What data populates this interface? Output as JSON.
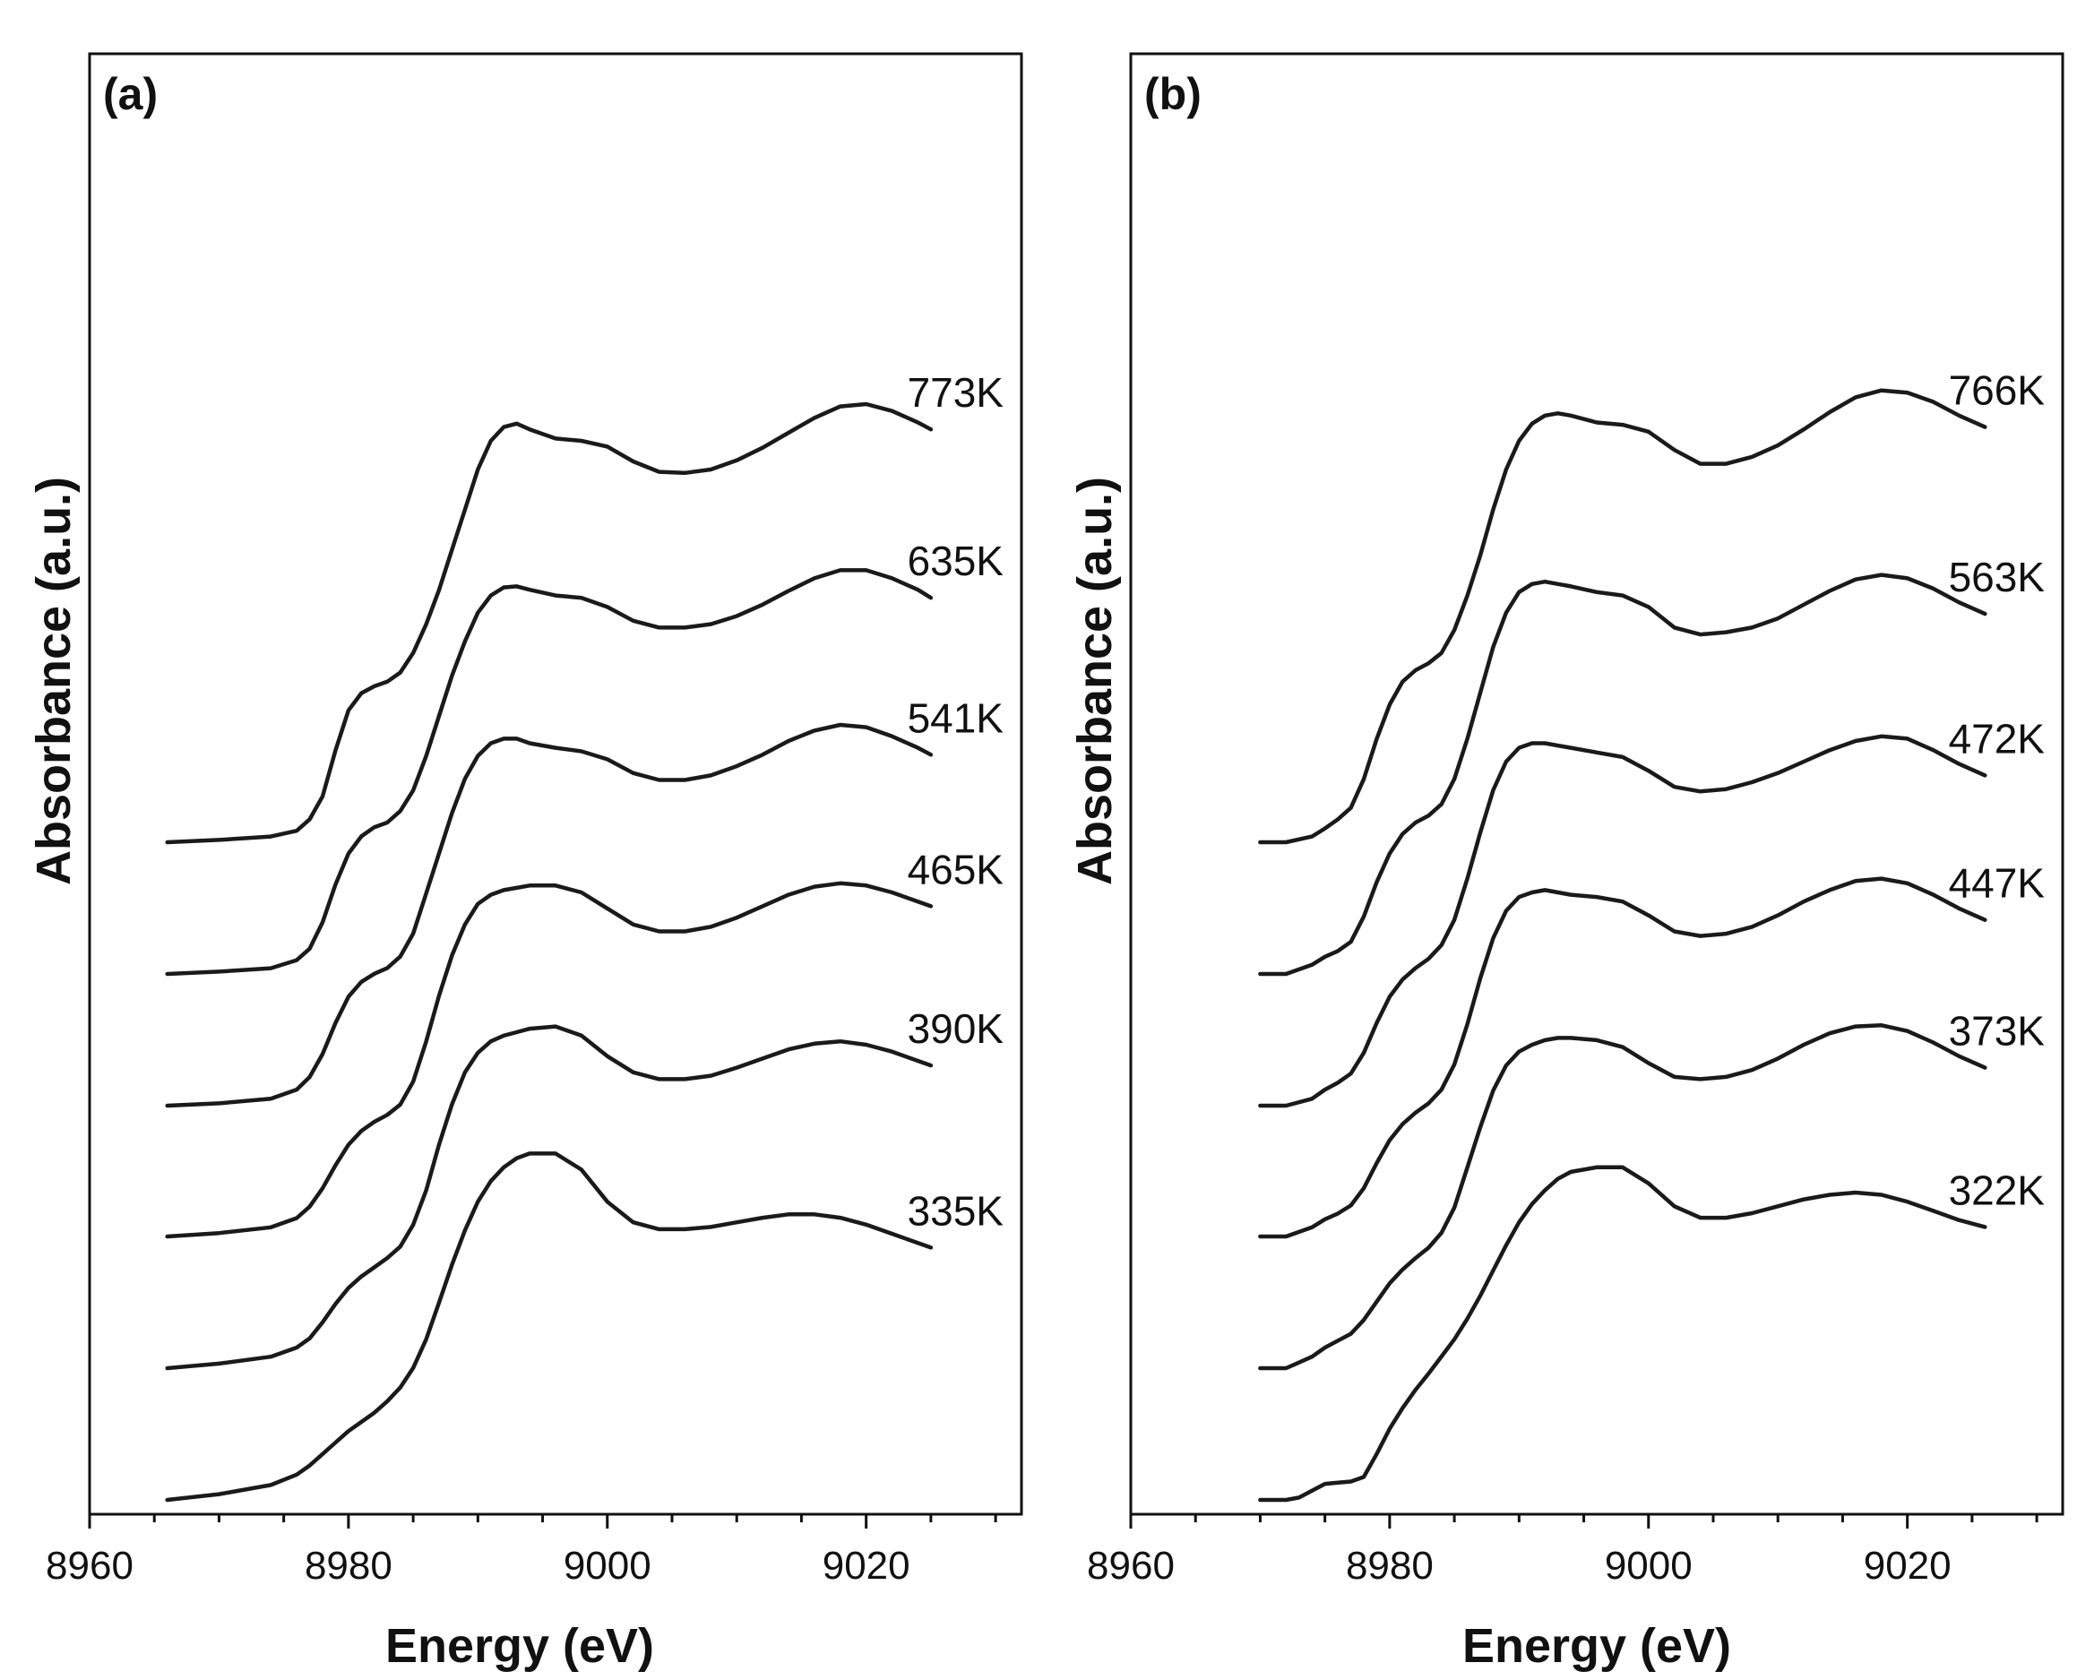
{
  "chart_data": [
    {
      "type": "line",
      "panel_label": "(a)",
      "xlabel": "Energy (eV)",
      "ylabel": "Absorbance (a.u.)",
      "xlim": [
        8960,
        9032
      ],
      "xticks": [
        8960,
        8980,
        9000,
        9020
      ],
      "yticks_shown": false,
      "note": "Curves vertically offset (stacked); y values in arbitrary units relative to each curve's pre-edge baseline",
      "series": [
        {
          "name": "773K",
          "x": [
            8966,
            8970,
            8974,
            8976,
            8977,
            8978,
            8979,
            8980,
            8981,
            8982,
            8983,
            8984,
            8985,
            8986,
            8987,
            8988,
            8989,
            8990,
            8991,
            8992,
            8993,
            8994,
            8996,
            8998,
            9000,
            9002,
            9004,
            9006,
            9008,
            9010,
            9012,
            9014,
            9016,
            9018,
            9020,
            9022,
            9024,
            9025
          ],
          "y": [
            0,
            0.02,
            0.05,
            0.1,
            0.2,
            0.4,
            0.8,
            1.15,
            1.3,
            1.36,
            1.4,
            1.48,
            1.65,
            1.9,
            2.2,
            2.55,
            2.9,
            3.25,
            3.5,
            3.62,
            3.65,
            3.6,
            3.52,
            3.5,
            3.45,
            3.32,
            3.23,
            3.22,
            3.25,
            3.33,
            3.44,
            3.57,
            3.7,
            3.8,
            3.82,
            3.76,
            3.66,
            3.6
          ]
        },
        {
          "name": "635K",
          "x": [
            8966,
            8970,
            8974,
            8976,
            8977,
            8978,
            8979,
            8980,
            8981,
            8982,
            8983,
            8984,
            8985,
            8986,
            8987,
            8988,
            8989,
            8990,
            8991,
            8992,
            8993,
            8994,
            8996,
            8998,
            9000,
            9002,
            9004,
            9006,
            9008,
            9010,
            9012,
            9014,
            9016,
            9018,
            9020,
            9022,
            9024,
            9025
          ],
          "y": [
            0,
            0.02,
            0.05,
            0.12,
            0.22,
            0.45,
            0.78,
            1.05,
            1.2,
            1.28,
            1.32,
            1.42,
            1.6,
            1.9,
            2.25,
            2.6,
            2.9,
            3.15,
            3.3,
            3.37,
            3.38,
            3.35,
            3.3,
            3.28,
            3.2,
            3.08,
            3.02,
            3.02,
            3.05,
            3.12,
            3.22,
            3.34,
            3.45,
            3.52,
            3.52,
            3.45,
            3.35,
            3.28
          ]
        },
        {
          "name": "541K",
          "x": [
            8966,
            8970,
            8974,
            8976,
            8977,
            8978,
            8979,
            8980,
            8981,
            8982,
            8983,
            8984,
            8985,
            8986,
            8987,
            8988,
            8989,
            8990,
            8991,
            8992,
            8993,
            8994,
            8996,
            8998,
            9000,
            9002,
            9004,
            9006,
            9008,
            9010,
            9012,
            9014,
            9016,
            9018,
            9020,
            9022,
            9024,
            9025
          ],
          "y": [
            0,
            0.02,
            0.06,
            0.14,
            0.25,
            0.45,
            0.72,
            0.95,
            1.08,
            1.15,
            1.2,
            1.3,
            1.5,
            1.85,
            2.2,
            2.55,
            2.85,
            3.05,
            3.16,
            3.2,
            3.2,
            3.16,
            3.12,
            3.09,
            3.02,
            2.9,
            2.84,
            2.84,
            2.88,
            2.96,
            3.06,
            3.18,
            3.27,
            3.32,
            3.3,
            3.22,
            3.12,
            3.06
          ]
        },
        {
          "name": "465K",
          "x": [
            8966,
            8970,
            8974,
            8976,
            8977,
            8978,
            8979,
            8980,
            8981,
            8982,
            8983,
            8984,
            8985,
            8986,
            8987,
            8988,
            8989,
            8990,
            8991,
            8992,
            8993,
            8994,
            8996,
            8998,
            9000,
            9002,
            9004,
            9006,
            9008,
            9010,
            9012,
            9014,
            9016,
            9018,
            9020,
            9022,
            9024,
            9025
          ],
          "y": [
            0,
            0.03,
            0.08,
            0.16,
            0.26,
            0.42,
            0.62,
            0.8,
            0.92,
            1.0,
            1.06,
            1.15,
            1.35,
            1.7,
            2.1,
            2.45,
            2.72,
            2.9,
            2.98,
            3.02,
            3.04,
            3.06,
            3.06,
            3.0,
            2.86,
            2.72,
            2.66,
            2.66,
            2.7,
            2.78,
            2.88,
            2.98,
            3.05,
            3.08,
            3.06,
            3.0,
            2.92,
            2.88
          ]
        },
        {
          "name": "390K",
          "x": [
            8966,
            8970,
            8974,
            8976,
            8977,
            8978,
            8979,
            8980,
            8981,
            8982,
            8983,
            8984,
            8985,
            8986,
            8987,
            8988,
            8989,
            8990,
            8991,
            8992,
            8993,
            8994,
            8996,
            8998,
            9000,
            9002,
            9004,
            9006,
            9008,
            9010,
            9012,
            9014,
            9016,
            9018,
            9020,
            9022,
            9024,
            9025
          ],
          "y": [
            0,
            0.04,
            0.1,
            0.18,
            0.26,
            0.4,
            0.56,
            0.7,
            0.8,
            0.88,
            0.96,
            1.06,
            1.25,
            1.55,
            1.95,
            2.3,
            2.58,
            2.75,
            2.85,
            2.9,
            2.93,
            2.96,
            2.98,
            2.9,
            2.72,
            2.58,
            2.52,
            2.52,
            2.55,
            2.62,
            2.7,
            2.78,
            2.83,
            2.85,
            2.82,
            2.76,
            2.68,
            2.64
          ]
        },
        {
          "name": "335K",
          "x": [
            8966,
            8970,
            8974,
            8976,
            8977,
            8978,
            8979,
            8980,
            8981,
            8982,
            8983,
            8984,
            8985,
            8986,
            8987,
            8988,
            8989,
            8990,
            8991,
            8992,
            8993,
            8994,
            8996,
            8998,
            9000,
            9002,
            9004,
            9006,
            9008,
            9010,
            9012,
            9014,
            9016,
            9018,
            9020,
            9022,
            9024,
            9025
          ],
          "y": [
            0,
            0.05,
            0.13,
            0.22,
            0.3,
            0.4,
            0.5,
            0.6,
            0.68,
            0.76,
            0.86,
            0.98,
            1.15,
            1.4,
            1.72,
            2.05,
            2.35,
            2.6,
            2.78,
            2.9,
            2.98,
            3.02,
            3.02,
            2.88,
            2.6,
            2.42,
            2.36,
            2.36,
            2.38,
            2.42,
            2.46,
            2.49,
            2.49,
            2.46,
            2.4,
            2.32,
            2.24,
            2.2
          ]
        }
      ]
    },
    {
      "type": "line",
      "panel_label": "(b)",
      "xlabel": "Energy (eV)",
      "ylabel": "Absorbance (a.u.)",
      "xlim": [
        8960,
        9032
      ],
      "xticks": [
        8960,
        8980,
        9000,
        9020
      ],
      "yticks_shown": false,
      "note": "Curves vertically offset (stacked); y values in arbitrary units relative to each curve's pre-edge baseline",
      "series": [
        {
          "name": "766K",
          "x": [
            8970,
            8972,
            8974,
            8975,
            8976,
            8977,
            8978,
            8979,
            8980,
            8981,
            8982,
            8983,
            8984,
            8985,
            8986,
            8987,
            8988,
            8989,
            8990,
            8991,
            8992,
            8993,
            8994,
            8996,
            8998,
            9000,
            9002,
            9004,
            9006,
            9008,
            9010,
            9012,
            9014,
            9016,
            9018,
            9020,
            9022,
            9024,
            9026
          ],
          "y": [
            0,
            0,
            0.05,
            0.12,
            0.2,
            0.3,
            0.55,
            0.9,
            1.2,
            1.4,
            1.5,
            1.56,
            1.65,
            1.85,
            2.15,
            2.5,
            2.9,
            3.25,
            3.5,
            3.65,
            3.72,
            3.74,
            3.72,
            3.66,
            3.64,
            3.58,
            3.42,
            3.3,
            3.3,
            3.36,
            3.46,
            3.6,
            3.75,
            3.88,
            3.94,
            3.92,
            3.84,
            3.72,
            3.62
          ]
        },
        {
          "name": "563K",
          "x": [
            8970,
            8972,
            8974,
            8975,
            8976,
            8977,
            8978,
            8979,
            8980,
            8981,
            8982,
            8983,
            8984,
            8985,
            8986,
            8987,
            8988,
            8989,
            8990,
            8991,
            8992,
            8993,
            8994,
            8996,
            8998,
            9000,
            9002,
            9004,
            9006,
            9008,
            9010,
            9012,
            9014,
            9016,
            9018,
            9020,
            9022,
            9024,
            9026
          ],
          "y": [
            0,
            0,
            0.08,
            0.15,
            0.2,
            0.28,
            0.5,
            0.8,
            1.05,
            1.22,
            1.32,
            1.38,
            1.48,
            1.7,
            2.05,
            2.45,
            2.85,
            3.15,
            3.33,
            3.4,
            3.42,
            3.4,
            3.38,
            3.33,
            3.3,
            3.2,
            3.02,
            2.96,
            2.98,
            3.02,
            3.1,
            3.22,
            3.34,
            3.44,
            3.48,
            3.45,
            3.36,
            3.24,
            3.14
          ]
        },
        {
          "name": "472K",
          "x": [
            8970,
            8972,
            8974,
            8975,
            8976,
            8977,
            8978,
            8979,
            8980,
            8981,
            8982,
            8983,
            8984,
            8985,
            8986,
            8987,
            8988,
            8989,
            8990,
            8991,
            8992,
            8993,
            8994,
            8996,
            8998,
            9000,
            9002,
            9004,
            9006,
            9008,
            9010,
            9012,
            9014,
            9016,
            9018,
            9020,
            9022,
            9024,
            9026
          ],
          "y": [
            0,
            0,
            0.06,
            0.14,
            0.2,
            0.28,
            0.46,
            0.72,
            0.95,
            1.1,
            1.2,
            1.28,
            1.4,
            1.62,
            1.98,
            2.38,
            2.75,
            3.0,
            3.12,
            3.16,
            3.16,
            3.14,
            3.12,
            3.08,
            3.04,
            2.92,
            2.78,
            2.74,
            2.76,
            2.82,
            2.9,
            3.0,
            3.1,
            3.18,
            3.22,
            3.2,
            3.1,
            2.98,
            2.88
          ]
        },
        {
          "name": "447K",
          "x": [
            8970,
            8972,
            8974,
            8975,
            8976,
            8977,
            8978,
            8979,
            8980,
            8981,
            8982,
            8983,
            8984,
            8985,
            8986,
            8987,
            8988,
            8989,
            8990,
            8991,
            8992,
            8993,
            8994,
            8996,
            8998,
            9000,
            9002,
            9004,
            9006,
            9008,
            9010,
            9012,
            9014,
            9016,
            9018,
            9020,
            9022,
            9024,
            9026
          ],
          "y": [
            0,
            0,
            0.08,
            0.15,
            0.2,
            0.27,
            0.42,
            0.64,
            0.84,
            0.98,
            1.08,
            1.16,
            1.28,
            1.5,
            1.85,
            2.25,
            2.6,
            2.84,
            2.96,
            3.0,
            3.02,
            3.0,
            2.98,
            2.96,
            2.92,
            2.8,
            2.66,
            2.62,
            2.64,
            2.7,
            2.8,
            2.92,
            3.02,
            3.1,
            3.12,
            3.08,
            2.98,
            2.86,
            2.76
          ]
        },
        {
          "name": "373K",
          "x": [
            8970,
            8972,
            8974,
            8975,
            8976,
            8977,
            8978,
            8979,
            8980,
            8981,
            8982,
            8983,
            8984,
            8985,
            8986,
            8987,
            8988,
            8989,
            8990,
            8991,
            8992,
            8993,
            8994,
            8996,
            8998,
            9000,
            9002,
            9004,
            9006,
            9008,
            9010,
            9012,
            9014,
            9016,
            9018,
            9020,
            9022,
            9024,
            9026
          ],
          "y": [
            0,
            0,
            0.1,
            0.18,
            0.24,
            0.3,
            0.42,
            0.58,
            0.74,
            0.86,
            0.96,
            1.05,
            1.18,
            1.4,
            1.75,
            2.1,
            2.42,
            2.64,
            2.76,
            2.82,
            2.86,
            2.88,
            2.88,
            2.86,
            2.8,
            2.66,
            2.54,
            2.52,
            2.54,
            2.6,
            2.7,
            2.82,
            2.92,
            2.98,
            2.99,
            2.94,
            2.84,
            2.72,
            2.62
          ]
        },
        {
          "name": "322K",
          "x": [
            8970,
            8972,
            8973,
            8974,
            8975,
            8976,
            8977,
            8978,
            8979,
            8980,
            8981,
            8982,
            8983,
            8984,
            8985,
            8986,
            8987,
            8988,
            8989,
            8990,
            8991,
            8992,
            8993,
            8994,
            8996,
            8998,
            9000,
            9002,
            9004,
            9006,
            9008,
            9010,
            9012,
            9014,
            9016,
            9018,
            9020,
            9022,
            9024,
            9026
          ],
          "y": [
            0,
            0,
            0.02,
            0.08,
            0.14,
            0.15,
            0.16,
            0.2,
            0.4,
            0.62,
            0.8,
            0.96,
            1.1,
            1.25,
            1.4,
            1.58,
            1.78,
            2.0,
            2.22,
            2.42,
            2.58,
            2.7,
            2.8,
            2.86,
            2.9,
            2.9,
            2.76,
            2.56,
            2.46,
            2.46,
            2.5,
            2.56,
            2.62,
            2.66,
            2.68,
            2.66,
            2.6,
            2.52,
            2.44,
            2.38
          ]
        }
      ]
    }
  ]
}
